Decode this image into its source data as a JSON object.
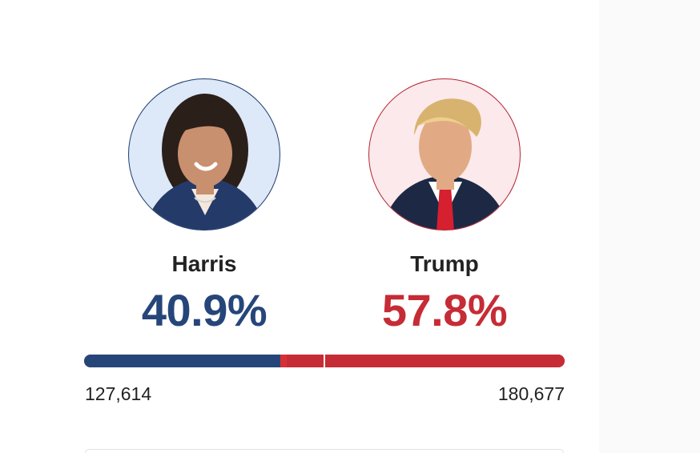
{
  "results": {
    "harris": {
      "name": "Harris",
      "percent": "40.9%",
      "percent_value": 40.9,
      "votes": "127,614",
      "color": "#26467a",
      "avatar_bg": "#dde8f8"
    },
    "trump": {
      "name": "Trump",
      "percent": "57.8%",
      "percent_value": 57.8,
      "votes": "180,677",
      "color": "#c62c36",
      "avatar_bg": "#fbe9ec"
    }
  }
}
